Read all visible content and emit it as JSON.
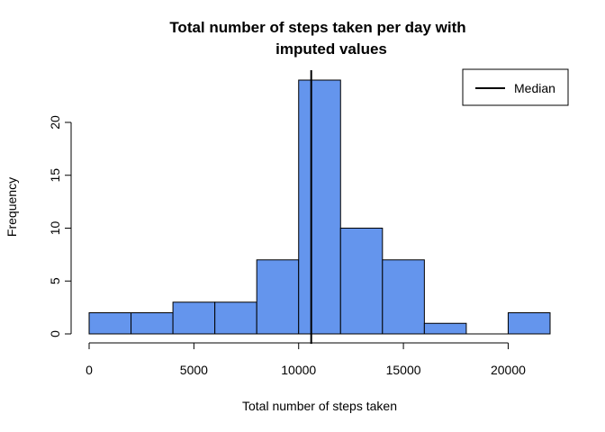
{
  "chart_data": {
    "type": "bar",
    "title_lines": [
      "Total number of steps taken per day with",
      "imputed values"
    ],
    "xlabel": "Total number of steps taken",
    "ylabel": "Frequency",
    "bins": [
      {
        "start": 0,
        "end": 2000,
        "count": 2
      },
      {
        "start": 2000,
        "end": 4000,
        "count": 2
      },
      {
        "start": 4000,
        "end": 6000,
        "count": 3
      },
      {
        "start": 6000,
        "end": 8000,
        "count": 3
      },
      {
        "start": 8000,
        "end": 10000,
        "count": 7
      },
      {
        "start": 10000,
        "end": 12000,
        "count": 24
      },
      {
        "start": 12000,
        "end": 14000,
        "count": 10
      },
      {
        "start": 14000,
        "end": 16000,
        "count": 7
      },
      {
        "start": 16000,
        "end": 18000,
        "count": 1
      },
      {
        "start": 18000,
        "end": 20000,
        "count": 0
      },
      {
        "start": 20000,
        "end": 22000,
        "count": 2
      }
    ],
    "x_ticks": [
      0,
      5000,
      10000,
      15000,
      20000
    ],
    "y_ticks": [
      0,
      5,
      10,
      15,
      20
    ],
    "xlim": [
      0,
      22000
    ],
    "ylim": [
      0,
      24
    ],
    "bar_color": "#6495ED",
    "median": 10600,
    "median_color": "#000000",
    "legend": {
      "position": "top-right",
      "entries": [
        {
          "label": "Median",
          "color": "#000000"
        }
      ]
    },
    "grid": false
  }
}
